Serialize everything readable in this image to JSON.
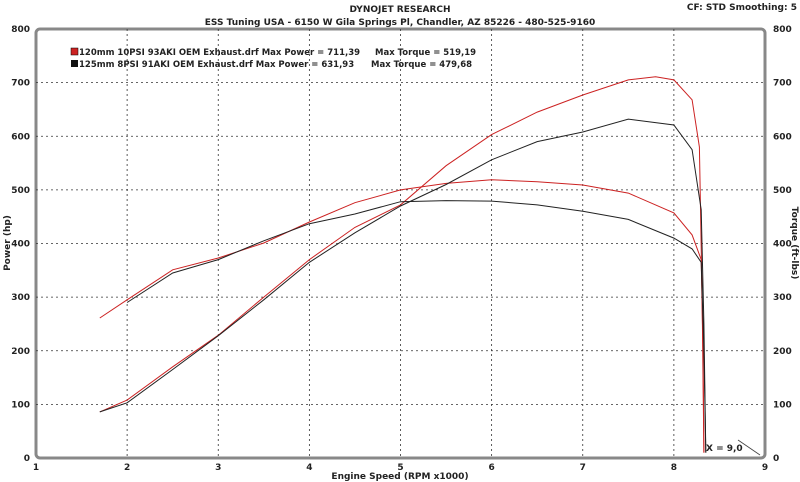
{
  "header": {
    "title": "DYNOJET RESEARCH",
    "subtitle": "ESS Tuning USA - 6150 W Gila Springs Pl, Chandler, AZ 85226 - 480-525-9160",
    "settings": "CF: STD  Smoothing: 5"
  },
  "chart_data": {
    "type": "line",
    "title": "DYNOJET RESEARCH",
    "xlabel": "Engine Speed (RPM x1000)",
    "ylabel": "Power (hp)",
    "y2label": "Torque (ft-lbs)",
    "xlim": [
      1,
      9
    ],
    "ylim": [
      0,
      800
    ],
    "y2lim": [
      0,
      800
    ],
    "xticks": [
      "1",
      "2",
      "3",
      "4",
      "5",
      "6",
      "7",
      "8",
      "9"
    ],
    "yticks": [
      "0",
      "100",
      "200",
      "300",
      "400",
      "500",
      "600",
      "700",
      "800"
    ],
    "grid": true,
    "legend_position": "top-left",
    "cursor_label": "X = 9,0",
    "legend": [
      {
        "text": "120mm 10PSI 93AKI OEM Exhaust.drf Max Power = 711,39",
        "torque_text": "Max Torque = 519,19",
        "color": "#cc2222"
      },
      {
        "text": "125mm 8PSI 91AKI OEM Exhaust.drf Max Power = 631,93",
        "torque_text": "Max Torque = 479,68",
        "color": "#222222"
      }
    ],
    "series": [
      {
        "name": "120mm 10PSI 93AKI OEM Exhaust.drf",
        "measure": "power",
        "color": "#cc2222",
        "x": [
          1.7,
          2.0,
          2.5,
          3.0,
          3.5,
          4.0,
          4.5,
          5.0,
          5.5,
          6.0,
          6.5,
          7.0,
          7.5,
          7.8,
          8.0,
          8.2,
          8.28,
          8.31,
          8.33
        ],
        "y": [
          86,
          108,
          170,
          229,
          300,
          370,
          430,
          472,
          545,
          603,
          645,
          677,
          705,
          711,
          705,
          668,
          580,
          300,
          10
        ]
      },
      {
        "name": "120mm 10PSI 93AKI OEM Exhaust.drf",
        "measure": "torque",
        "color": "#cc2222",
        "x": [
          1.7,
          2.0,
          2.5,
          3.0,
          3.5,
          4.0,
          4.5,
          5.0,
          5.5,
          6.0,
          6.5,
          7.0,
          7.5,
          8.0,
          8.2,
          8.3,
          8.32,
          8.33
        ],
        "y": [
          261,
          295,
          351,
          373,
          401,
          440,
          476,
          500,
          512,
          519,
          515,
          509,
          494,
          457,
          416,
          370,
          200,
          10
        ]
      },
      {
        "name": "125mm 8PSI 91AKI OEM Exhaust.drf",
        "measure": "power",
        "color": "#222222",
        "x": [
          1.7,
          2.0,
          2.5,
          3.0,
          3.5,
          4.0,
          4.5,
          5.0,
          5.5,
          6.0,
          6.5,
          7.0,
          7.5,
          8.0,
          8.2,
          8.3,
          8.33,
          8.35
        ],
        "y": [
          86,
          103,
          165,
          228,
          295,
          365,
          420,
          470,
          510,
          556,
          590,
          608,
          632,
          621,
          575,
          463,
          250,
          10
        ]
      },
      {
        "name": "125mm 8PSI 91AKI OEM Exhaust.drf",
        "measure": "torque",
        "color": "#222222",
        "x": [
          2.0,
          2.5,
          3.0,
          3.5,
          4.0,
          4.5,
          5.0,
          5.5,
          6.0,
          6.5,
          7.0,
          7.5,
          8.0,
          8.2,
          8.3,
          8.33,
          8.35
        ],
        "y": [
          290,
          345,
          370,
          405,
          437,
          455,
          478,
          480,
          479,
          472,
          460,
          445,
          410,
          390,
          365,
          200,
          10
        ]
      }
    ]
  }
}
